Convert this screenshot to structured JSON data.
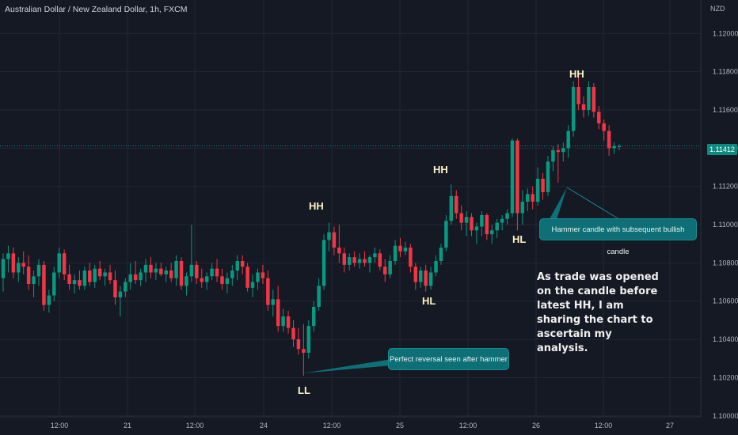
{
  "header": {
    "symbol_title": "Australian Dollar / New Zealand Dollar, 1h, FXCM",
    "currency": "NZD",
    "last_price": "1.11412"
  },
  "markers": {
    "hh1": "HH",
    "hh2": "HH",
    "hh3": "HH",
    "hl1": "HL",
    "hl2": "HL",
    "ll": "LL"
  },
  "callouts": {
    "hammer": "Hammer candle with subsequent bullish candle",
    "reversal": "Perfect reversal seen after hammer"
  },
  "note": "As trade was opened\non the candle before\nlatest HH, I am\nsharing the chart to\nascertain my\nanalysis.",
  "colors": {
    "background": "#151924",
    "bull": "#089981",
    "bear": "#f23645",
    "grid": "#242733",
    "callout": "#0e6f76",
    "price_line": "#0b8b80"
  },
  "chart_data": {
    "type": "candlestick",
    "y_ticks": [
      "1.12000",
      "1.11800",
      "1.11600",
      "1.11400",
      "1.11200",
      "1.11000",
      "1.10800",
      "1.10600",
      "1.10400",
      "1.10200",
      "1.10000"
    ],
    "x_ticks": [
      "12:00",
      "21",
      "12:00",
      "24",
      "12:00",
      "25",
      "12:00",
      "26",
      "12:00",
      "27"
    ],
    "ylim": [
      1.09995,
      1.12175
    ],
    "last_price": 1.11412,
    "candles": [
      {
        "o": 1.1072,
        "h": 1.1085,
        "l": 1.1065,
        "c": 1.1082
      },
      {
        "o": 1.1082,
        "h": 1.1089,
        "l": 1.1075,
        "c": 1.1085
      },
      {
        "o": 1.1085,
        "h": 1.1088,
        "l": 1.1072,
        "c": 1.1075
      },
      {
        "o": 1.1075,
        "h": 1.1083,
        "l": 1.107,
        "c": 1.108
      },
      {
        "o": 1.108,
        "h": 1.1086,
        "l": 1.1074,
        "c": 1.1078
      },
      {
        "o": 1.1078,
        "h": 1.1084,
        "l": 1.1066,
        "c": 1.1069
      },
      {
        "o": 1.1069,
        "h": 1.1076,
        "l": 1.1062,
        "c": 1.1073
      },
      {
        "o": 1.1073,
        "h": 1.1082,
        "l": 1.1068,
        "c": 1.1079
      },
      {
        "o": 1.1079,
        "h": 1.1081,
        "l": 1.1055,
        "c": 1.1058
      },
      {
        "o": 1.1058,
        "h": 1.1066,
        "l": 1.1054,
        "c": 1.1063
      },
      {
        "o": 1.1063,
        "h": 1.1078,
        "l": 1.106,
        "c": 1.1075
      },
      {
        "o": 1.1075,
        "h": 1.1088,
        "l": 1.1072,
        "c": 1.1085
      },
      {
        "o": 1.1085,
        "h": 1.1087,
        "l": 1.1071,
        "c": 1.1074
      },
      {
        "o": 1.1074,
        "h": 1.1079,
        "l": 1.1066,
        "c": 1.1069
      },
      {
        "o": 1.1069,
        "h": 1.1074,
        "l": 1.1064,
        "c": 1.1071
      },
      {
        "o": 1.1071,
        "h": 1.1076,
        "l": 1.1066,
        "c": 1.1068
      },
      {
        "o": 1.1068,
        "h": 1.1078,
        "l": 1.1066,
        "c": 1.1076
      },
      {
        "o": 1.1076,
        "h": 1.108,
        "l": 1.1068,
        "c": 1.107
      },
      {
        "o": 1.107,
        "h": 1.1079,
        "l": 1.1067,
        "c": 1.1077
      },
      {
        "o": 1.1077,
        "h": 1.1081,
        "l": 1.1071,
        "c": 1.1073
      },
      {
        "o": 1.1073,
        "h": 1.1077,
        "l": 1.1068,
        "c": 1.1075
      },
      {
        "o": 1.1075,
        "h": 1.1079,
        "l": 1.1069,
        "c": 1.1071
      },
      {
        "o": 1.1071,
        "h": 1.1076,
        "l": 1.1058,
        "c": 1.1062
      },
      {
        "o": 1.1062,
        "h": 1.1068,
        "l": 1.1052,
        "c": 1.1065
      },
      {
        "o": 1.1065,
        "h": 1.1072,
        "l": 1.1062,
        "c": 1.107
      },
      {
        "o": 1.107,
        "h": 1.108,
        "l": 1.1066,
        "c": 1.1074
      },
      {
        "o": 1.1074,
        "h": 1.1081,
        "l": 1.1069,
        "c": 1.1071
      },
      {
        "o": 1.1071,
        "h": 1.1077,
        "l": 1.1068,
        "c": 1.1075
      },
      {
        "o": 1.1075,
        "h": 1.1082,
        "l": 1.107,
        "c": 1.1079
      },
      {
        "o": 1.1079,
        "h": 1.1083,
        "l": 1.1072,
        "c": 1.1075
      },
      {
        "o": 1.1075,
        "h": 1.108,
        "l": 1.1071,
        "c": 1.1077
      },
      {
        "o": 1.1077,
        "h": 1.108,
        "l": 1.1073,
        "c": 1.1074
      },
      {
        "o": 1.1074,
        "h": 1.1078,
        "l": 1.107,
        "c": 1.1076
      },
      {
        "o": 1.1076,
        "h": 1.108,
        "l": 1.107,
        "c": 1.1072
      },
      {
        "o": 1.1072,
        "h": 1.1084,
        "l": 1.1068,
        "c": 1.1081
      },
      {
        "o": 1.1081,
        "h": 1.1083,
        "l": 1.1066,
        "c": 1.1068
      },
      {
        "o": 1.1068,
        "h": 1.1075,
        "l": 1.1063,
        "c": 1.1073
      },
      {
        "o": 1.1073,
        "h": 1.11,
        "l": 1.107,
        "c": 1.1079
      },
      {
        "o": 1.1079,
        "h": 1.1081,
        "l": 1.1069,
        "c": 1.1072
      },
      {
        "o": 1.1072,
        "h": 1.1077,
        "l": 1.1067,
        "c": 1.107
      },
      {
        "o": 1.107,
        "h": 1.1075,
        "l": 1.1066,
        "c": 1.1073
      },
      {
        "o": 1.1073,
        "h": 1.108,
        "l": 1.1071,
        "c": 1.1077
      },
      {
        "o": 1.1077,
        "h": 1.1082,
        "l": 1.107,
        "c": 1.1073
      },
      {
        "o": 1.1073,
        "h": 1.1077,
        "l": 1.1066,
        "c": 1.1069
      },
      {
        "o": 1.1069,
        "h": 1.1075,
        "l": 1.1064,
        "c": 1.1072
      },
      {
        "o": 1.1072,
        "h": 1.1079,
        "l": 1.1068,
        "c": 1.1076
      },
      {
        "o": 1.1076,
        "h": 1.1084,
        "l": 1.1071,
        "c": 1.1081
      },
      {
        "o": 1.1081,
        "h": 1.1084,
        "l": 1.1074,
        "c": 1.1078
      },
      {
        "o": 1.1078,
        "h": 1.108,
        "l": 1.1065,
        "c": 1.1067
      },
      {
        "o": 1.1067,
        "h": 1.1074,
        "l": 1.1062,
        "c": 1.107
      },
      {
        "o": 1.107,
        "h": 1.1077,
        "l": 1.1066,
        "c": 1.1075
      },
      {
        "o": 1.1075,
        "h": 1.1079,
        "l": 1.1069,
        "c": 1.1072
      },
      {
        "o": 1.1072,
        "h": 1.1076,
        "l": 1.1055,
        "c": 1.1058
      },
      {
        "o": 1.1058,
        "h": 1.1066,
        "l": 1.1052,
        "c": 1.1061
      },
      {
        "o": 1.1061,
        "h": 1.1068,
        "l": 1.1044,
        "c": 1.1047
      },
      {
        "o": 1.1047,
        "h": 1.1056,
        "l": 1.1044,
        "c": 1.1052
      },
      {
        "o": 1.1052,
        "h": 1.1055,
        "l": 1.1043,
        "c": 1.1046
      },
      {
        "o": 1.1046,
        "h": 1.105,
        "l": 1.1036,
        "c": 1.104
      },
      {
        "o": 1.104,
        "h": 1.1046,
        "l": 1.1032,
        "c": 1.1035
      },
      {
        "o": 1.1035,
        "h": 1.1048,
        "l": 1.1021,
        "c": 1.1033
      },
      {
        "o": 1.1033,
        "h": 1.105,
        "l": 1.103,
        "c": 1.1047
      },
      {
        "o": 1.1047,
        "h": 1.106,
        "l": 1.1044,
        "c": 1.1057
      },
      {
        "o": 1.1057,
        "h": 1.1072,
        "l": 1.1055,
        "c": 1.1068
      },
      {
        "o": 1.1068,
        "h": 1.1095,
        "l": 1.1066,
        "c": 1.1092
      },
      {
        "o": 1.1092,
        "h": 1.1101,
        "l": 1.1086,
        "c": 1.1096
      },
      {
        "o": 1.1096,
        "h": 1.1099,
        "l": 1.1084,
        "c": 1.1088
      },
      {
        "o": 1.1088,
        "h": 1.11,
        "l": 1.108,
        "c": 1.1085
      },
      {
        "o": 1.1085,
        "h": 1.1088,
        "l": 1.1075,
        "c": 1.1079
      },
      {
        "o": 1.1079,
        "h": 1.1085,
        "l": 1.1076,
        "c": 1.1083
      },
      {
        "o": 1.1083,
        "h": 1.1086,
        "l": 1.1078,
        "c": 1.108
      },
      {
        "o": 1.108,
        "h": 1.1085,
        "l": 1.1077,
        "c": 1.1082
      },
      {
        "o": 1.1082,
        "h": 1.1086,
        "l": 1.1078,
        "c": 1.108
      },
      {
        "o": 1.108,
        "h": 1.1084,
        "l": 1.1075,
        "c": 1.1083
      },
      {
        "o": 1.1083,
        "h": 1.1088,
        "l": 1.108,
        "c": 1.1085
      },
      {
        "o": 1.1085,
        "h": 1.1087,
        "l": 1.1076,
        "c": 1.1078
      },
      {
        "o": 1.1078,
        "h": 1.1082,
        "l": 1.107,
        "c": 1.1074
      },
      {
        "o": 1.1074,
        "h": 1.1084,
        "l": 1.1072,
        "c": 1.1081
      },
      {
        "o": 1.1081,
        "h": 1.1092,
        "l": 1.1079,
        "c": 1.1089
      },
      {
        "o": 1.1089,
        "h": 1.1093,
        "l": 1.1083,
        "c": 1.1086
      },
      {
        "o": 1.1086,
        "h": 1.1091,
        "l": 1.1084,
        "c": 1.1088
      },
      {
        "o": 1.1088,
        "h": 1.109,
        "l": 1.1075,
        "c": 1.1078
      },
      {
        "o": 1.1078,
        "h": 1.108,
        "l": 1.1066,
        "c": 1.107
      },
      {
        "o": 1.107,
        "h": 1.1078,
        "l": 1.1067,
        "c": 1.1076
      },
      {
        "o": 1.1076,
        "h": 1.1079,
        "l": 1.1065,
        "c": 1.1068
      },
      {
        "o": 1.1068,
        "h": 1.1078,
        "l": 1.1066,
        "c": 1.1075
      },
      {
        "o": 1.1075,
        "h": 1.1084,
        "l": 1.1073,
        "c": 1.1081
      },
      {
        "o": 1.1081,
        "h": 1.109,
        "l": 1.1079,
        "c": 1.1088
      },
      {
        "o": 1.1088,
        "h": 1.1105,
        "l": 1.1086,
        "c": 1.1102
      },
      {
        "o": 1.1102,
        "h": 1.1121,
        "l": 1.11,
        "c": 1.1115
      },
      {
        "o": 1.1115,
        "h": 1.1118,
        "l": 1.1103,
        "c": 1.1106
      },
      {
        "o": 1.1106,
        "h": 1.111,
        "l": 1.1097,
        "c": 1.1101
      },
      {
        "o": 1.1101,
        "h": 1.1107,
        "l": 1.1094,
        "c": 1.1104
      },
      {
        "o": 1.1104,
        "h": 1.1106,
        "l": 1.1094,
        "c": 1.1097
      },
      {
        "o": 1.1097,
        "h": 1.1101,
        "l": 1.109,
        "c": 1.1099
      },
      {
        "o": 1.1099,
        "h": 1.1107,
        "l": 1.1094,
        "c": 1.1105
      },
      {
        "o": 1.1105,
        "h": 1.1106,
        "l": 1.1092,
        "c": 1.1095
      },
      {
        "o": 1.1095,
        "h": 1.11,
        "l": 1.109,
        "c": 1.1097
      },
      {
        "o": 1.1097,
        "h": 1.1103,
        "l": 1.1093,
        "c": 1.1101
      },
      {
        "o": 1.1101,
        "h": 1.1105,
        "l": 1.1097,
        "c": 1.1103
      },
      {
        "o": 1.1103,
        "h": 1.1108,
        "l": 1.11,
        "c": 1.1106
      },
      {
        "o": 1.1106,
        "h": 1.1145,
        "l": 1.1104,
        "c": 1.1144
      },
      {
        "o": 1.1144,
        "h": 1.1145,
        "l": 1.1097,
        "c": 1.1106
      },
      {
        "o": 1.1106,
        "h": 1.1118,
        "l": 1.11,
        "c": 1.1112
      },
      {
        "o": 1.1112,
        "h": 1.1119,
        "l": 1.1107,
        "c": 1.1116
      },
      {
        "o": 1.1116,
        "h": 1.112,
        "l": 1.1108,
        "c": 1.1112
      },
      {
        "o": 1.1112,
        "h": 1.113,
        "l": 1.111,
        "c": 1.1124
      },
      {
        "o": 1.1124,
        "h": 1.1127,
        "l": 1.1113,
        "c": 1.1117
      },
      {
        "o": 1.1117,
        "h": 1.1136,
        "l": 1.1115,
        "c": 1.1133
      },
      {
        "o": 1.1133,
        "h": 1.1141,
        "l": 1.1128,
        "c": 1.1139
      },
      {
        "o": 1.1139,
        "h": 1.1142,
        "l": 1.1122,
        "c": 1.1138
      },
      {
        "o": 1.1138,
        "h": 1.1143,
        "l": 1.1133,
        "c": 1.114
      },
      {
        "o": 1.114,
        "h": 1.1152,
        "l": 1.1135,
        "c": 1.1149
      },
      {
        "o": 1.1149,
        "h": 1.1175,
        "l": 1.1146,
        "c": 1.1172
      },
      {
        "o": 1.1172,
        "h": 1.1178,
        "l": 1.116,
        "c": 1.1163
      },
      {
        "o": 1.1163,
        "h": 1.1167,
        "l": 1.1156,
        "c": 1.116
      },
      {
        "o": 1.116,
        "h": 1.1175,
        "l": 1.1157,
        "c": 1.1172
      },
      {
        "o": 1.1172,
        "h": 1.1174,
        "l": 1.1156,
        "c": 1.1159
      },
      {
        "o": 1.1159,
        "h": 1.1162,
        "l": 1.115,
        "c": 1.1153
      },
      {
        "o": 1.1153,
        "h": 1.1155,
        "l": 1.1144,
        "c": 1.1149
      },
      {
        "o": 1.1149,
        "h": 1.1152,
        "l": 1.1136,
        "c": 1.114
      },
      {
        "o": 1.114,
        "h": 1.1143,
        "l": 1.1137,
        "c": 1.1141
      },
      {
        "o": 1.1141,
        "h": 1.1142,
        "l": 1.1139,
        "c": 1.1141
      }
    ]
  }
}
